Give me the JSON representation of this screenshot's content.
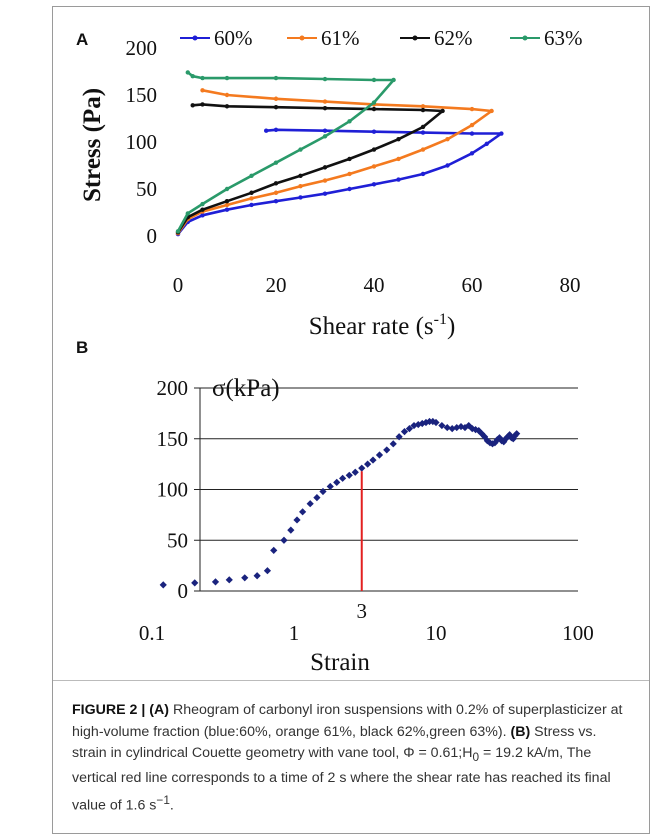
{
  "panel_a_letter": "A",
  "panel_b_letter": "B",
  "caption": {
    "figure": "FIGURE 2 |",
    "part_a": "(A)",
    "text_a": "Rheogram of carbonyl iron suspensions with 0.2% of superplasticizer at high-volume fraction (blue:60%, orange 61%, black 62%,green 63%).",
    "part_b": "(B)",
    "text_b_pre": "Stress vs. strain in cylindrical Couette geometry with vane tool, Φ = 0.61;H",
    "text_b_sub": "0",
    "text_b_mid": " = 19.2 kA/m, The vertical red line corresponds to a time of 2 s where the shear rate has reached its final value of 1.6 s",
    "text_b_sup": "−1",
    "text_b_end": "."
  },
  "colors": {
    "blue": "#1f1fd6",
    "orange": "#f47a1f",
    "black": "#111111",
    "green": "#2a9a6a",
    "navy": "#1a237e",
    "red": "#e32020"
  },
  "chart_data": [
    {
      "type": "line",
      "xlabel": "Shear rate (s",
      "xlabel_sup": "-1",
      "xlabel_end": ")",
      "ylabel": "Stress (Pa)",
      "xlim": [
        0,
        80
      ],
      "ylim": [
        0,
        200
      ],
      "xticks": [
        "0",
        "20",
        "40",
        "60",
        "80"
      ],
      "yticks": [
        "0",
        "50",
        "100",
        "150",
        "200"
      ],
      "legend_position": "top",
      "grid": false,
      "series": [
        {
          "name": "60%",
          "color": "blue",
          "x": [
            0,
            2,
            5,
            10,
            15,
            20,
            25,
            30,
            35,
            40,
            45,
            50,
            55,
            60,
            63,
            66,
            60,
            50,
            40,
            30,
            20,
            18
          ],
          "y": [
            2,
            15,
            22,
            28,
            33,
            37,
            41,
            45,
            50,
            55,
            60,
            66,
            75,
            88,
            98,
            109,
            109,
            110,
            111,
            112,
            113,
            112
          ]
        },
        {
          "name": "61%",
          "color": "orange",
          "x": [
            0,
            2,
            5,
            10,
            15,
            20,
            25,
            30,
            35,
            40,
            45,
            50,
            55,
            60,
            64,
            60,
            50,
            40,
            30,
            20,
            10,
            5
          ],
          "y": [
            3,
            18,
            26,
            33,
            40,
            46,
            53,
            59,
            66,
            74,
            82,
            92,
            103,
            118,
            133,
            135,
            138,
            140,
            143,
            146,
            150,
            155
          ]
        },
        {
          "name": "62%",
          "color": "black",
          "x": [
            0,
            2,
            5,
            10,
            15,
            20,
            25,
            30,
            35,
            40,
            45,
            50,
            54,
            50,
            40,
            30,
            20,
            10,
            5,
            3
          ],
          "y": [
            4,
            20,
            28,
            37,
            46,
            56,
            64,
            73,
            82,
            92,
            103,
            116,
            133,
            134,
            135,
            136,
            137,
            138,
            140,
            139
          ]
        },
        {
          "name": "63%",
          "color": "green",
          "x": [
            0,
            2,
            5,
            10,
            15,
            20,
            25,
            30,
            35,
            40,
            44,
            40,
            30,
            20,
            10,
            5,
            3,
            2
          ],
          "y": [
            5,
            24,
            34,
            50,
            64,
            78,
            92,
            106,
            122,
            142,
            166,
            166,
            167,
            168,
            168,
            168,
            170,
            174
          ]
        }
      ]
    },
    {
      "type": "scatter",
      "xlabel": "Strain",
      "ylabel": "σ(kPa)",
      "xscale": "log",
      "xlim": [
        0.1,
        100
      ],
      "ylim": [
        0,
        200
      ],
      "xticks": [
        "0.1",
        "1",
        "10",
        "100"
      ],
      "yticks": [
        "0",
        "50",
        "100",
        "150",
        "200"
      ],
      "grid": true,
      "marker_label": "3",
      "marker_x": 3,
      "marker_y": 118,
      "series": [
        {
          "color": "navy",
          "x": [
            0.12,
            0.2,
            0.28,
            0.35,
            0.45,
            0.55,
            0.65,
            0.72,
            0.85,
            0.95,
            1.05,
            1.15,
            1.3,
            1.45,
            1.6,
            1.8,
            2.0,
            2.2,
            2.45,
            2.7,
            3.0,
            3.3,
            3.6,
            4.0,
            4.5,
            5.0,
            5.5,
            6.0,
            6.5,
            7.0,
            7.5,
            8.0,
            8.5,
            9.0,
            9.5,
            10,
            11,
            12,
            13,
            14,
            15,
            16,
            17,
            18,
            19,
            20,
            21,
            22,
            23,
            24,
            25,
            26,
            27,
            28,
            29,
            30,
            31,
            32,
            33,
            34,
            35,
            36,
            37
          ],
          "y": [
            6,
            8,
            9,
            11,
            13,
            15,
            20,
            40,
            50,
            60,
            70,
            78,
            86,
            92,
            98,
            103,
            107,
            111,
            114,
            117,
            121,
            125,
            129,
            134,
            139,
            145,
            152,
            157,
            160,
            163,
            164,
            165,
            166,
            167,
            167,
            166,
            163,
            161,
            160,
            161,
            162,
            161,
            163,
            160,
            159,
            158,
            155,
            152,
            148,
            146,
            145,
            146,
            149,
            151,
            148,
            147,
            150,
            152,
            154,
            151,
            150,
            153,
            155
          ]
        }
      ]
    }
  ]
}
